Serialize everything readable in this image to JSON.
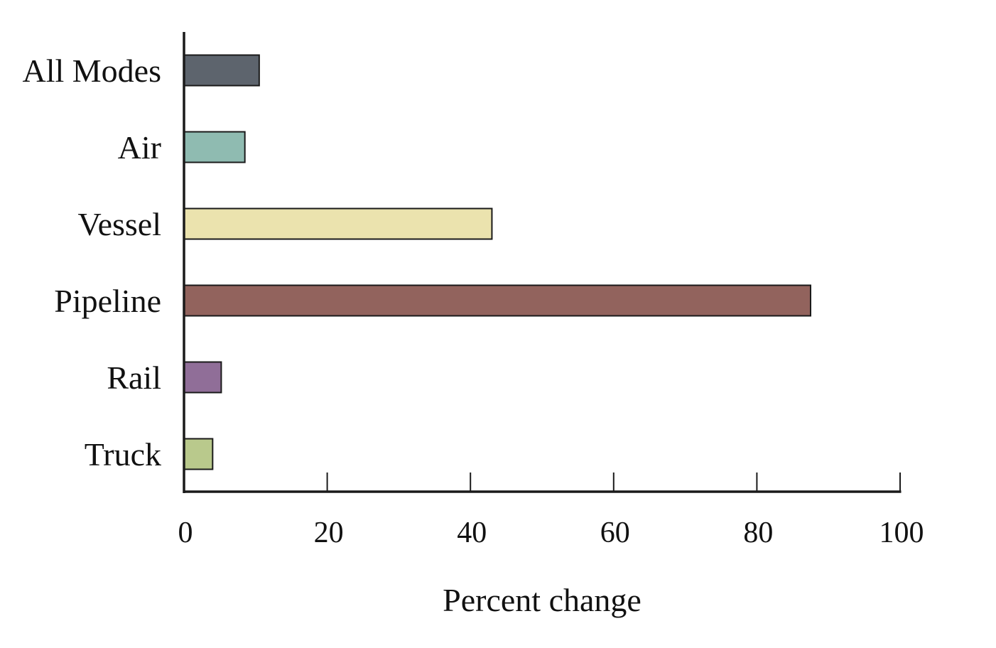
{
  "chart_data": {
    "type": "bar",
    "orientation": "horizontal",
    "title": "",
    "xlabel": "Percent change",
    "ylabel": "",
    "xlim": [
      0,
      100
    ],
    "xticks": [
      0,
      20,
      40,
      60,
      80,
      100
    ],
    "xtick_labels": [
      "0",
      "20",
      "40",
      "60",
      "80",
      "100"
    ],
    "grid": false,
    "legend": "none",
    "categories": [
      "All Modes",
      "Air",
      "Vessel",
      "Pipeline",
      "Rail",
      "Truck"
    ],
    "values": [
      10.5,
      8.5,
      43,
      87.5,
      5.2,
      4
    ],
    "colors": [
      "#5d646d",
      "#8fbbb1",
      "#ebe3ae",
      "#92635d",
      "#906e98",
      "#b9c98c"
    ],
    "bar_edge_color": "#1a1a1a",
    "axis_color": "#1a1a1a"
  }
}
